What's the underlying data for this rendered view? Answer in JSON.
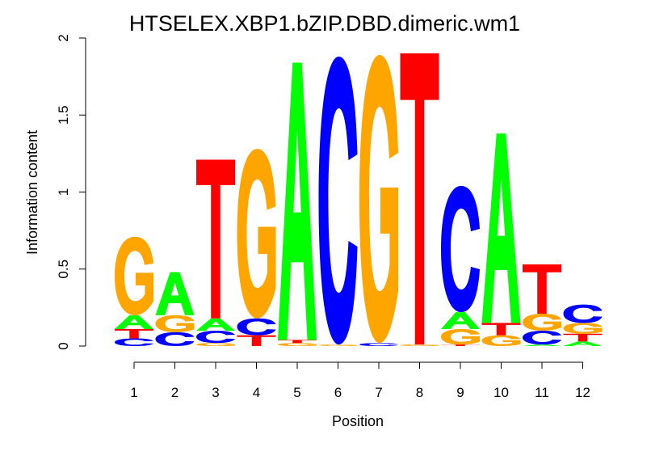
{
  "chart_data": {
    "type": "sequence-logo",
    "title": "HTSELEX.XBP1.bZIP.DBD.dimeric.wm1",
    "xlabel": "Position",
    "ylabel": "Information content",
    "ylim": [
      0,
      2
    ],
    "y_ticks": [
      "0",
      "0.5",
      "1",
      "1.5",
      "2"
    ],
    "x_ticks": [
      "1",
      "2",
      "3",
      "4",
      "5",
      "6",
      "7",
      "8",
      "9",
      "10",
      "11",
      "12"
    ],
    "grid": false,
    "legend": "none",
    "colors": {
      "A": "#00ff00",
      "C": "#0000ff",
      "G": "#ffa500",
      "T": "#ff0000"
    },
    "positions": [
      {
        "position": 1,
        "letters": [
          {
            "base": "C",
            "height": 0.05
          },
          {
            "base": "T",
            "height": 0.06
          },
          {
            "base": "A",
            "height": 0.09
          },
          {
            "base": "G",
            "height": 0.51
          }
        ]
      },
      {
        "position": 2,
        "letters": [
          {
            "base": "C",
            "height": 0.09
          },
          {
            "base": "G",
            "height": 0.11
          },
          {
            "base": "A",
            "height": 0.28
          }
        ]
      },
      {
        "position": 3,
        "letters": [
          {
            "base": "G",
            "height": 0.02
          },
          {
            "base": "C",
            "height": 0.08
          },
          {
            "base": "A",
            "height": 0.08
          },
          {
            "base": "T",
            "height": 1.03
          }
        ]
      },
      {
        "position": 4,
        "letters": [
          {
            "base": "T",
            "height": 0.07
          },
          {
            "base": "C",
            "height": 0.11
          },
          {
            "base": "G",
            "height": 1.1
          }
        ]
      },
      {
        "position": 5,
        "letters": [
          {
            "base": "G",
            "height": 0.02
          },
          {
            "base": "T",
            "height": 0.02
          },
          {
            "base": "A",
            "height": 1.8
          }
        ]
      },
      {
        "position": 6,
        "letters": [
          {
            "base": "G",
            "height": 0.01
          },
          {
            "base": "C",
            "height": 1.87
          }
        ]
      },
      {
        "position": 7,
        "letters": [
          {
            "base": "C",
            "height": 0.02
          },
          {
            "base": "G",
            "height": 1.87
          }
        ]
      },
      {
        "position": 8,
        "letters": [
          {
            "base": "G",
            "height": 0.01
          },
          {
            "base": "T",
            "height": 1.89
          }
        ]
      },
      {
        "position": 9,
        "letters": [
          {
            "base": "T",
            "height": 0.01
          },
          {
            "base": "G",
            "height": 0.1
          },
          {
            "base": "A",
            "height": 0.11
          },
          {
            "base": "C",
            "height": 0.82
          }
        ]
      },
      {
        "position": 10,
        "letters": [
          {
            "base": "G",
            "height": 0.07
          },
          {
            "base": "T",
            "height": 0.08
          },
          {
            "base": "A",
            "height": 1.23
          }
        ]
      },
      {
        "position": 11,
        "letters": [
          {
            "base": "A",
            "height": 0.01
          },
          {
            "base": "C",
            "height": 0.09
          },
          {
            "base": "G",
            "height": 0.11
          },
          {
            "base": "T",
            "height": 0.32
          }
        ]
      },
      {
        "position": 12,
        "letters": [
          {
            "base": "A",
            "height": 0.03
          },
          {
            "base": "T",
            "height": 0.05
          },
          {
            "base": "G",
            "height": 0.07
          },
          {
            "base": "C",
            "height": 0.12
          }
        ]
      }
    ]
  }
}
